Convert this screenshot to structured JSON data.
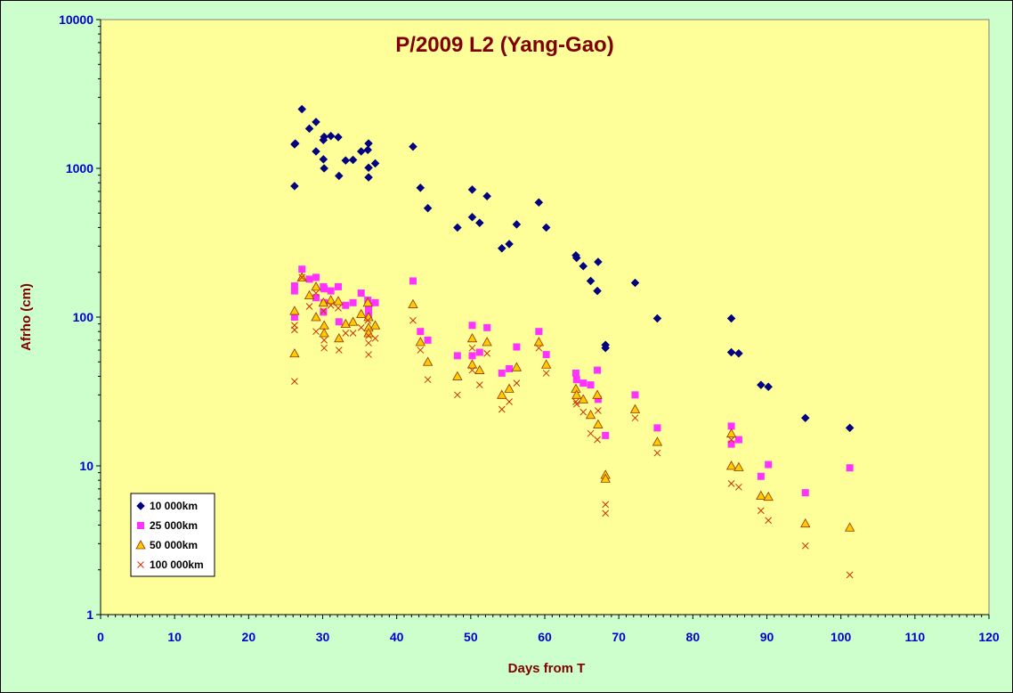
{
  "chart_data": {
    "type": "scatter",
    "title": "P/2009 L2 (Yang-Gao)",
    "xlabel": "Days from T",
    "ylabel": "Afrho (cm)",
    "xlim": [
      0,
      120
    ],
    "ylim": [
      1,
      10000
    ],
    "yscale": "log",
    "x_ticks": [
      "0",
      "10",
      "20",
      "30",
      "40",
      "50",
      "60",
      "70",
      "80",
      "90",
      "100",
      "110",
      "120"
    ],
    "y_ticks": [
      "1",
      "10",
      "100",
      "1000",
      "10000"
    ],
    "grid": false,
    "legend_position": "bottom-left",
    "colors": {
      "background": "#ccffcc",
      "plot_area": "#ffff99",
      "title": "#800000",
      "ticks": "#0000cc"
    },
    "series": [
      {
        "name": "10 000km",
        "marker": "diamond",
        "color": "#000080",
        "points": [
          [
            26.2,
            1450
          ],
          [
            26.3,
            1470
          ],
          [
            26.2,
            760
          ],
          [
            27.2,
            2500
          ],
          [
            28.2,
            1850
          ],
          [
            29.1,
            2050
          ],
          [
            29.1,
            1300
          ],
          [
            30.1,
            1550
          ],
          [
            30.2,
            1630
          ],
          [
            30.1,
            1150
          ],
          [
            30.2,
            1000
          ],
          [
            31.1,
            1650
          ],
          [
            32.1,
            1620
          ],
          [
            32.2,
            890
          ],
          [
            33.1,
            1130
          ],
          [
            34.1,
            1140
          ],
          [
            35.2,
            1300
          ],
          [
            36.1,
            1330
          ],
          [
            36.2,
            1470
          ],
          [
            36.2,
            1010
          ],
          [
            36.2,
            870
          ],
          [
            37.1,
            1080
          ],
          [
            42.2,
            1400
          ],
          [
            43.2,
            740
          ],
          [
            44.2,
            540
          ],
          [
            48.2,
            400
          ],
          [
            50.2,
            720
          ],
          [
            50.2,
            470
          ],
          [
            51.2,
            430
          ],
          [
            52.2,
            650
          ],
          [
            54.2,
            290
          ],
          [
            55.2,
            310
          ],
          [
            56.2,
            420
          ],
          [
            59.2,
            590
          ],
          [
            60.2,
            400
          ],
          [
            64.2,
            260
          ],
          [
            64.3,
            250
          ],
          [
            65.2,
            220
          ],
          [
            66.2,
            175
          ],
          [
            67.1,
            150
          ],
          [
            67.2,
            235
          ],
          [
            68.2,
            65
          ],
          [
            68.2,
            62
          ],
          [
            72.2,
            170
          ],
          [
            75.2,
            98
          ],
          [
            85.2,
            98
          ],
          [
            85.2,
            58
          ],
          [
            86.2,
            57
          ],
          [
            89.2,
            35
          ],
          [
            90.2,
            34
          ],
          [
            95.2,
            21
          ],
          [
            101.2,
            18
          ]
        ]
      },
      {
        "name": "25 000km",
        "marker": "square",
        "color": "#ff33ff",
        "points": [
          [
            26.2,
            162
          ],
          [
            26.2,
            150
          ],
          [
            26.2,
            100
          ],
          [
            27.2,
            210
          ],
          [
            28.2,
            180
          ],
          [
            29.1,
            185
          ],
          [
            29.1,
            135
          ],
          [
            30.1,
            160
          ],
          [
            30.2,
            155
          ],
          [
            30.2,
            125
          ],
          [
            30.1,
            108
          ],
          [
            31.1,
            150
          ],
          [
            32.1,
            160
          ],
          [
            32.2,
            93
          ],
          [
            33.1,
            120
          ],
          [
            34.1,
            125
          ],
          [
            35.2,
            145
          ],
          [
            36.1,
            130
          ],
          [
            36.2,
            120
          ],
          [
            36.2,
            110
          ],
          [
            36.2,
            105
          ],
          [
            37.1,
            125
          ],
          [
            42.2,
            175
          ],
          [
            43.2,
            80
          ],
          [
            44.2,
            70
          ],
          [
            48.2,
            55
          ],
          [
            50.2,
            88
          ],
          [
            50.2,
            55
          ],
          [
            51.2,
            58
          ],
          [
            52.2,
            85
          ],
          [
            54.2,
            42
          ],
          [
            55.2,
            45
          ],
          [
            56.2,
            63
          ],
          [
            59.2,
            80
          ],
          [
            60.2,
            56
          ],
          [
            64.2,
            42
          ],
          [
            64.3,
            38
          ],
          [
            65.2,
            36
          ],
          [
            66.2,
            35
          ],
          [
            67.1,
            44
          ],
          [
            67.2,
            28
          ],
          [
            68.2,
            16
          ],
          [
            72.2,
            30
          ],
          [
            75.2,
            18
          ],
          [
            85.2,
            18.5
          ],
          [
            85.2,
            14
          ],
          [
            86.2,
            15
          ],
          [
            89.2,
            8.5
          ],
          [
            90.2,
            10.2
          ],
          [
            95.2,
            6.6
          ],
          [
            101.2,
            9.7
          ]
        ]
      },
      {
        "name": "50 000km",
        "marker": "triangle",
        "color": "#ffcc00",
        "points": [
          [
            26.2,
            110
          ],
          [
            26.2,
            57
          ],
          [
            27.2,
            185
          ],
          [
            28.2,
            140
          ],
          [
            29.1,
            160
          ],
          [
            29.1,
            100
          ],
          [
            30.1,
            125
          ],
          [
            30.2,
            88
          ],
          [
            30.2,
            78
          ],
          [
            31.1,
            130
          ],
          [
            32.1,
            128
          ],
          [
            32.2,
            72
          ],
          [
            33.1,
            90
          ],
          [
            34.1,
            93
          ],
          [
            35.2,
            105
          ],
          [
            36.1,
            125
          ],
          [
            36.2,
            100
          ],
          [
            36.2,
            85
          ],
          [
            36.2,
            78
          ],
          [
            37.1,
            88
          ],
          [
            42.2,
            122
          ],
          [
            43.2,
            68
          ],
          [
            44.2,
            50
          ],
          [
            48.2,
            40
          ],
          [
            50.2,
            72
          ],
          [
            50.2,
            48
          ],
          [
            51.2,
            44
          ],
          [
            52.2,
            68
          ],
          [
            54.2,
            30
          ],
          [
            55.2,
            33
          ],
          [
            56.2,
            46
          ],
          [
            59.2,
            68
          ],
          [
            60.2,
            48
          ],
          [
            64.2,
            33
          ],
          [
            64.3,
            30
          ],
          [
            65.2,
            28
          ],
          [
            66.2,
            22
          ],
          [
            67.1,
            30
          ],
          [
            67.2,
            19
          ],
          [
            68.2,
            8.7
          ],
          [
            68.2,
            8.2
          ],
          [
            72.2,
            24
          ],
          [
            75.2,
            14.5
          ],
          [
            85.2,
            16.5
          ],
          [
            85.2,
            10
          ],
          [
            86.2,
            9.8
          ],
          [
            89.2,
            6.3
          ],
          [
            90.2,
            6.2
          ],
          [
            95.2,
            4.1
          ],
          [
            101.2,
            3.85
          ]
        ]
      },
      {
        "name": "100 000km",
        "marker": "x",
        "color": "#cc3300",
        "points": [
          [
            26.2,
            88
          ],
          [
            26.2,
            82
          ],
          [
            26.2,
            37
          ],
          [
            27.2,
            185
          ],
          [
            28.2,
            118
          ],
          [
            29.1,
            145
          ],
          [
            29.1,
            80
          ],
          [
            30.1,
            110
          ],
          [
            30.2,
            70
          ],
          [
            30.2,
            62
          ],
          [
            31.1,
            120
          ],
          [
            32.1,
            115
          ],
          [
            32.2,
            60
          ],
          [
            33.1,
            78
          ],
          [
            34.1,
            78
          ],
          [
            35.2,
            85
          ],
          [
            36.1,
            95
          ],
          [
            36.2,
            75
          ],
          [
            36.2,
            67
          ],
          [
            36.2,
            56
          ],
          [
            37.1,
            72
          ],
          [
            42.2,
            95
          ],
          [
            43.2,
            60
          ],
          [
            44.2,
            38
          ],
          [
            48.2,
            30
          ],
          [
            50.2,
            62
          ],
          [
            50.2,
            44
          ],
          [
            51.2,
            35
          ],
          [
            52.2,
            57
          ],
          [
            54.2,
            24
          ],
          [
            55.2,
            27
          ],
          [
            56.2,
            36
          ],
          [
            59.2,
            62
          ],
          [
            60.2,
            42
          ],
          [
            64.2,
            27
          ],
          [
            64.3,
            26
          ],
          [
            65.2,
            23
          ],
          [
            66.2,
            16.5
          ],
          [
            67.1,
            15
          ],
          [
            67.2,
            23.5
          ],
          [
            68.2,
            5.5
          ],
          [
            68.2,
            4.8
          ],
          [
            72.2,
            21
          ],
          [
            75.2,
            12.2
          ],
          [
            85.2,
            15
          ],
          [
            85.2,
            7.6
          ],
          [
            86.2,
            7.2
          ],
          [
            89.2,
            5
          ],
          [
            90.2,
            4.3
          ],
          [
            95.2,
            2.9
          ],
          [
            101.2,
            1.85
          ]
        ]
      }
    ]
  }
}
